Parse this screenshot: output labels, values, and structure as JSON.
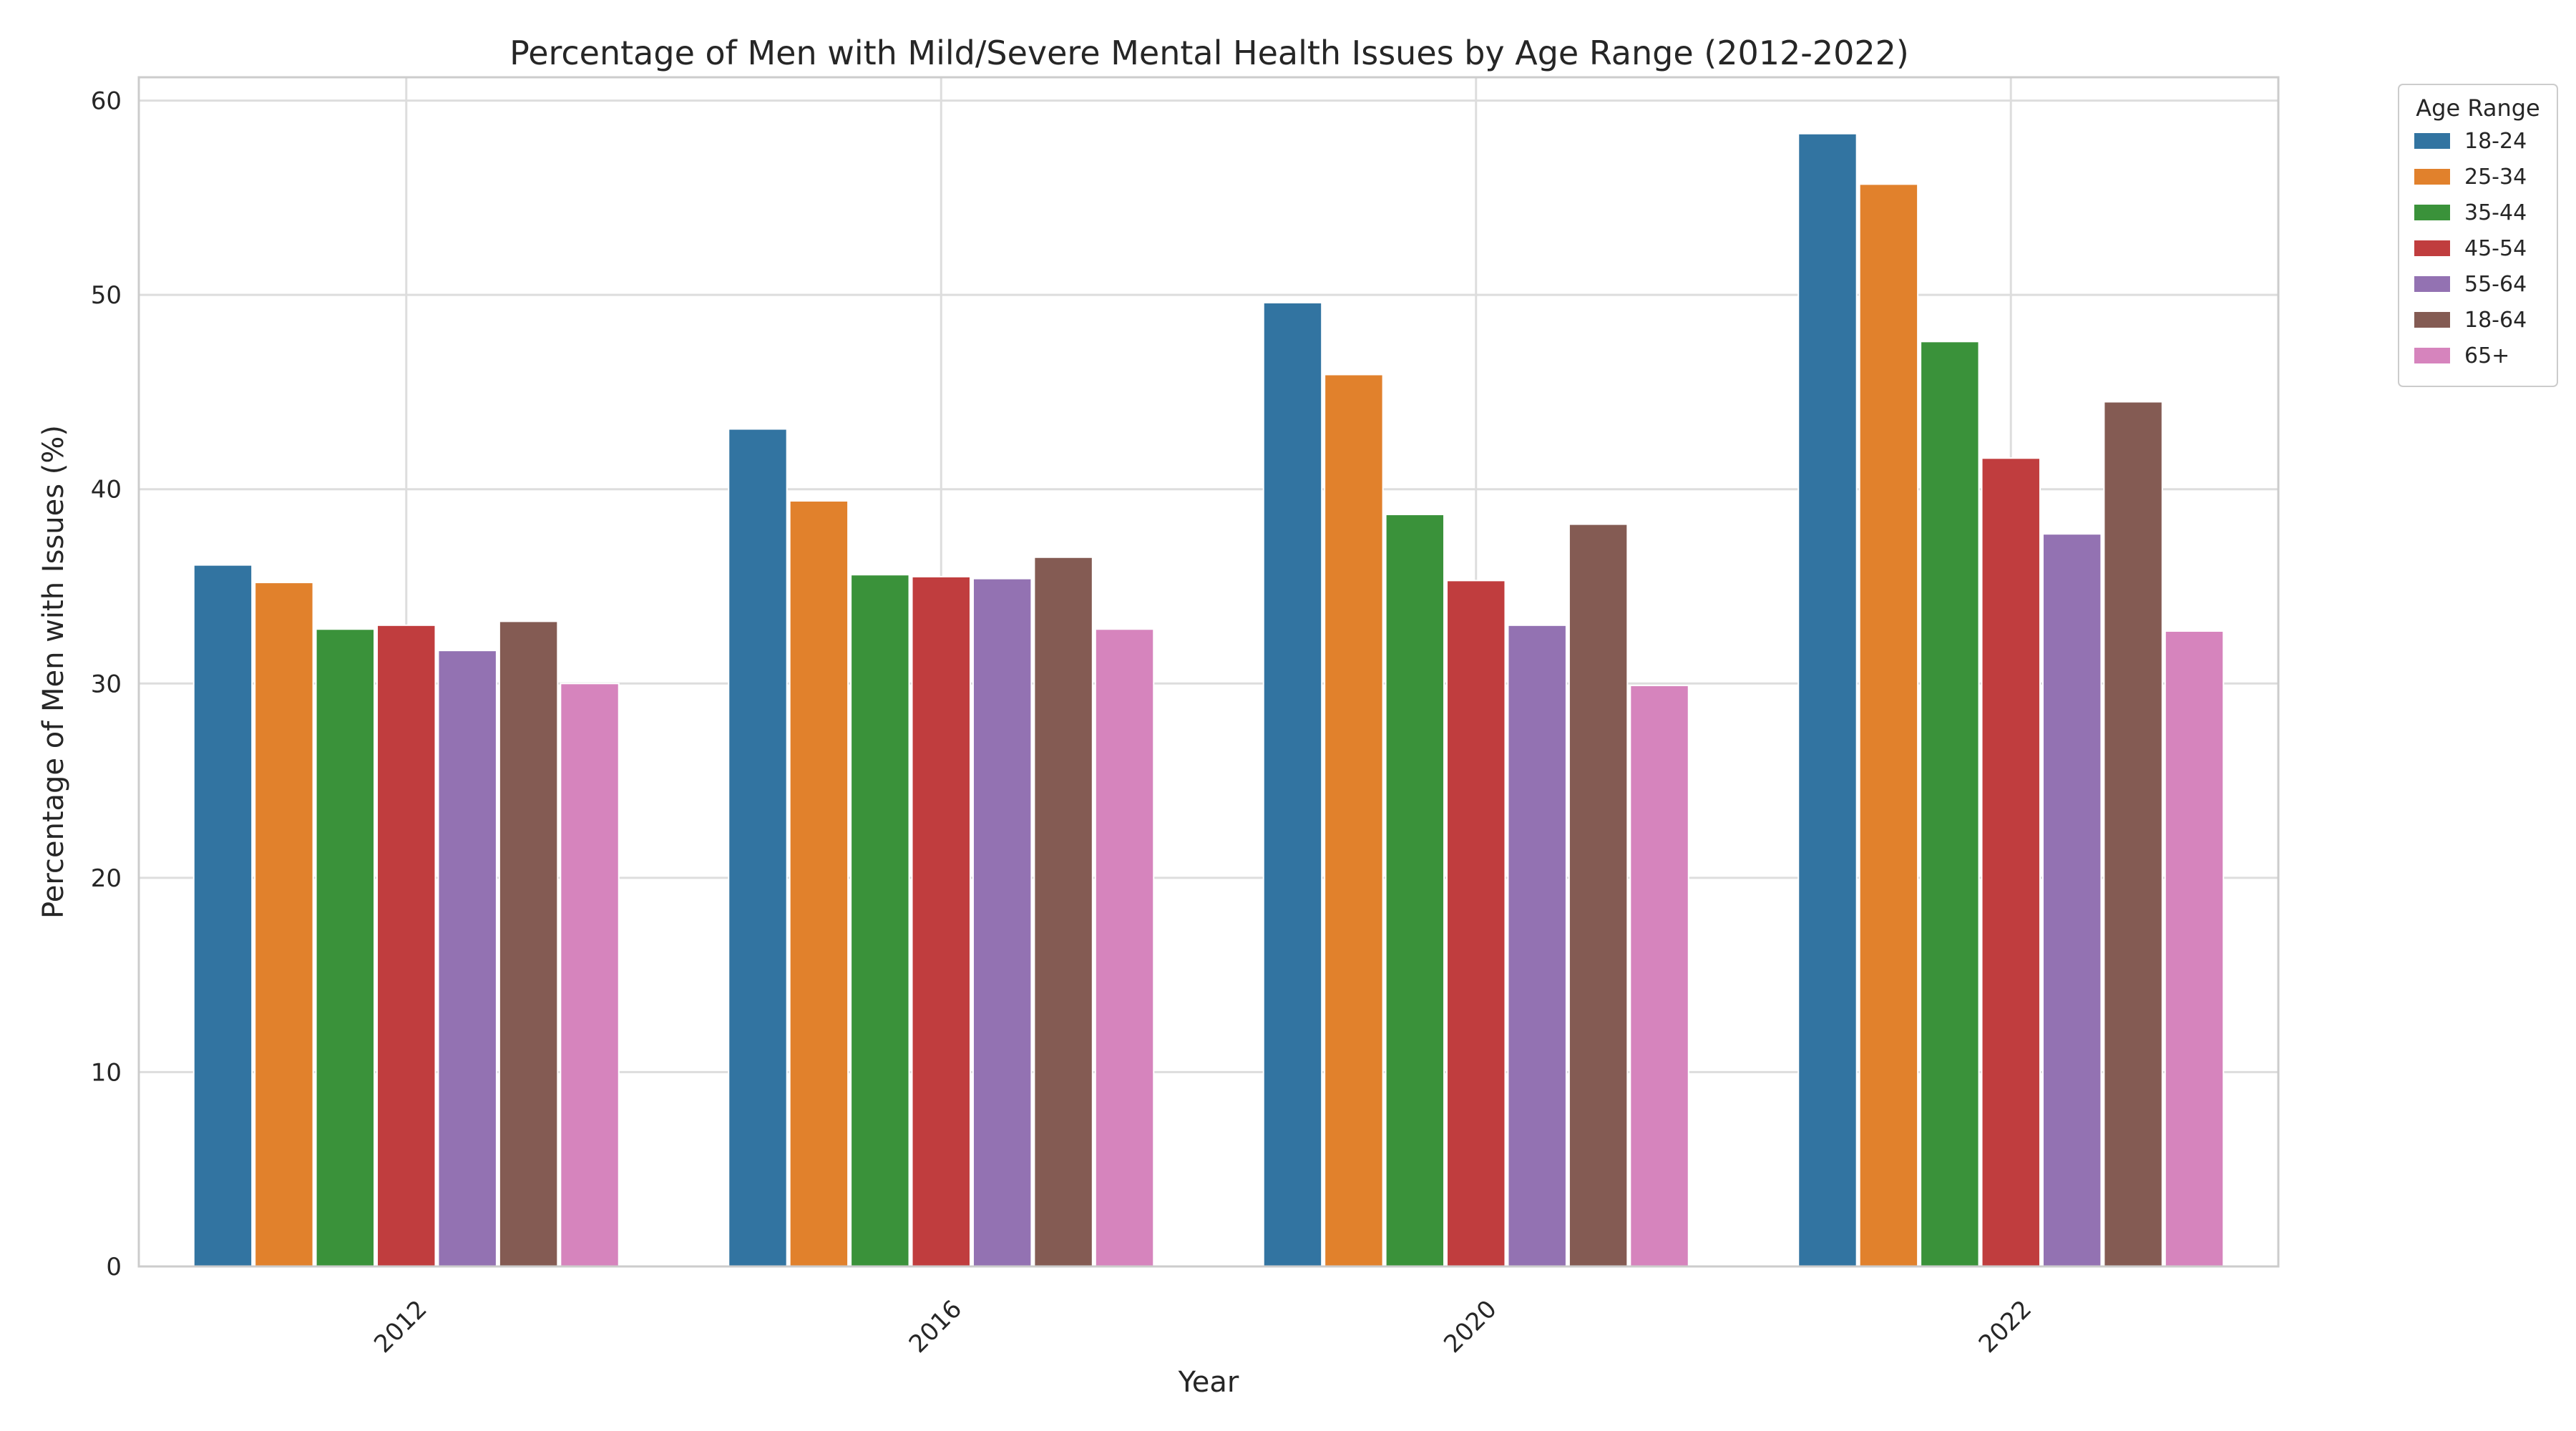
{
  "chart_data": {
    "type": "bar",
    "title": "Percentage of Men with Mild/Severe Mental Health Issues by Age Range (2012-2022)",
    "xlabel": "Year",
    "ylabel": "Percentage of Men with Issues (%)",
    "categories": [
      "2012",
      "2016",
      "2020",
      "2022"
    ],
    "ylim": [
      0,
      61.2
    ],
    "yticks": [
      0,
      10,
      20,
      30,
      40,
      50,
      60
    ],
    "grid": true,
    "legend": {
      "title": "Age Range",
      "placement": "outside top-right"
    },
    "series": [
      {
        "name": "18-24",
        "color": "#3274a1",
        "values": [
          36.1,
          43.1,
          49.6,
          58.3
        ]
      },
      {
        "name": "25-34",
        "color": "#e1812c",
        "values": [
          35.2,
          39.4,
          45.9,
          55.7
        ]
      },
      {
        "name": "35-44",
        "color": "#3a923a",
        "values": [
          32.8,
          35.6,
          38.7,
          47.6
        ]
      },
      {
        "name": "45-54",
        "color": "#c03d3e",
        "values": [
          33.0,
          35.5,
          35.3,
          41.6
        ]
      },
      {
        "name": "55-64",
        "color": "#9372b2",
        "values": [
          31.7,
          35.4,
          33.0,
          37.7
        ]
      },
      {
        "name": "18-64",
        "color": "#845b53",
        "values": [
          33.2,
          36.5,
          38.2,
          44.5
        ]
      },
      {
        "name": "65+",
        "color": "#d684bd",
        "values": [
          30.0,
          32.8,
          29.9,
          32.7
        ]
      }
    ]
  }
}
